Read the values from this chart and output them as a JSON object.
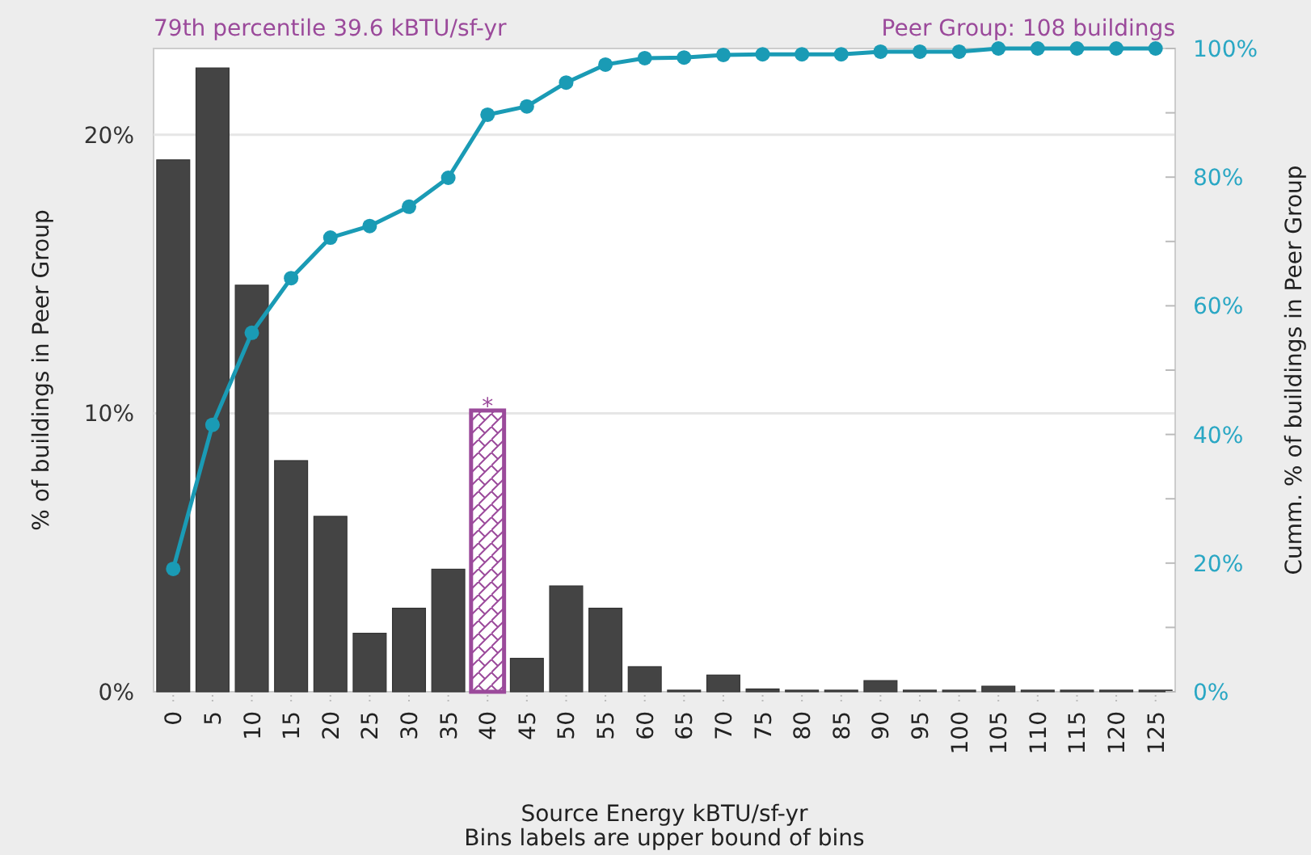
{
  "chart_data": {
    "type": "bar",
    "title": "79th percentile 39.6 kBTU/sf-yr",
    "subtitle": "Peer Group: 108 buildings",
    "xlabel": "Source Energy kBTU/sf-yr",
    "ylabel": "% of buildings in Peer Group",
    "y2label": "Cumm. % of buildings in Peer Group",
    "categories": [
      "0",
      "5",
      "10",
      "15",
      "20",
      "25",
      "30",
      "35",
      "40",
      "45",
      "50",
      "55",
      "60",
      "65",
      "70",
      "75",
      "80",
      "85",
      "90",
      "95",
      "100",
      "105",
      "110",
      "115",
      "120",
      "125"
    ],
    "series": [
      {
        "color": "#444444",
        "colors": [
          "#444444",
          "#444444",
          "#444444",
          "#444444",
          "#444444",
          "#444444",
          "#444444",
          "#444444",
          "#9b4a9b",
          "#444444",
          "#444444",
          "#444444",
          "#444444",
          "#444444",
          "#444444",
          "#444444",
          "#444444",
          "#444444",
          "#444444",
          "#444444",
          "#444444",
          "#444444",
          "#444444",
          "#444444",
          "#444444",
          "#444444"
        ],
        "values": [
          19.1,
          22.4,
          14.6,
          8.3,
          6.3,
          2.1,
          3.0,
          4.4,
          10.1,
          1.2,
          3.8,
          3.0,
          0.9,
          0,
          0.6,
          0.1,
          0,
          0,
          0.4,
          0,
          0,
          0.2,
          0,
          0,
          0,
          0
        ]
      },
      {
        "type": "line",
        "axis": "y2",
        "color": "#1a9bb5",
        "marker": "circle",
        "values": [
          19.1,
          41.5,
          55.8,
          64.3,
          70.6,
          72.4,
          75.4,
          79.9,
          89.7,
          91.0,
          94.7,
          97.5,
          98.5,
          98.6,
          99.0,
          99.1,
          99.1,
          99.1,
          99.5,
          99.5,
          99.5,
          100,
          100,
          100,
          100,
          100
        ]
      }
    ],
    "ylim": [
      0,
      23.1
    ],
    "yticks": [
      {
        "value": 0,
        "label": "0%"
      },
      {
        "value": 10,
        "label": "10%"
      },
      {
        "value": 20,
        "label": "20%"
      }
    ],
    "y2lim": [
      0,
      100
    ],
    "y2ticks": [
      {
        "value": 0,
        "label": "0%"
      },
      {
        "value": 10,
        "label": null
      },
      {
        "value": 20,
        "label": "20%"
      },
      {
        "value": 30,
        "label": null
      },
      {
        "value": 40,
        "label": "40%"
      },
      {
        "value": 50,
        "label": null
      },
      {
        "value": 60,
        "label": "60%"
      },
      {
        "value": 70,
        "label": null
      },
      {
        "value": 80,
        "label": "80%"
      },
      {
        "value": 90,
        "label": null
      },
      {
        "value": 100,
        "label": "100%"
      }
    ],
    "grid": "y",
    "annotations": [
      {
        "text": "*",
        "x": "40",
        "y": 10.1
      },
      "Bins labels are upper bound of bins"
    ]
  }
}
